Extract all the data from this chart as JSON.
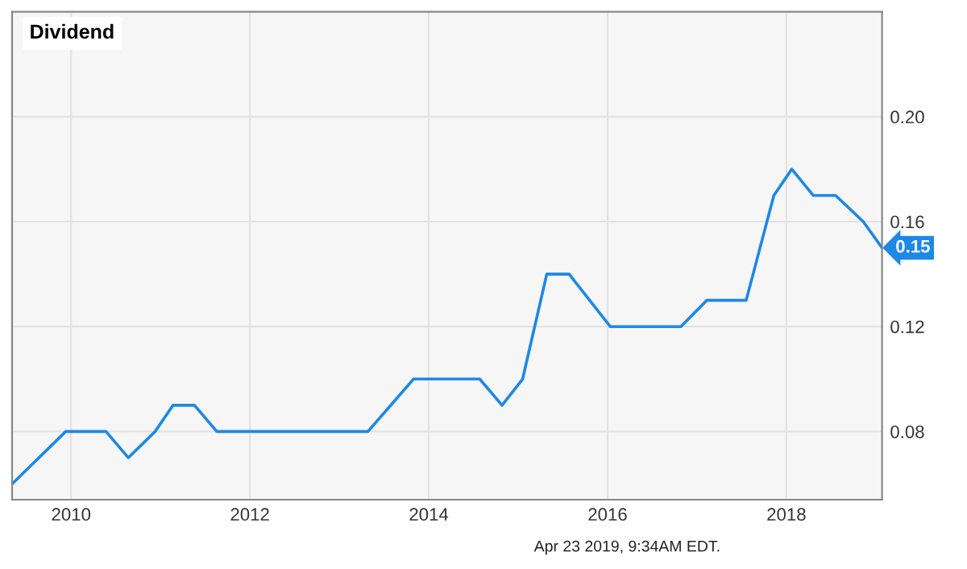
{
  "chart_data": {
    "type": "line",
    "title": "Dividend",
    "x": [
      2009.34,
      2009.94,
      2010.39,
      2010.64,
      2010.94,
      2011.14,
      2011.38,
      2011.63,
      2013.32,
      2013.83,
      2014.57,
      2014.82,
      2015.05,
      2015.32,
      2015.57,
      2016.03,
      2016.82,
      2017.11,
      2017.55,
      2017.86,
      2018.06,
      2018.3,
      2018.55,
      2018.86,
      2019.07
    ],
    "series": [
      {
        "color": "#1e88e5",
        "values": [
          0.06,
          0.08,
          0.08,
          0.07,
          0.08,
          0.09,
          0.09,
          0.08,
          0.08,
          0.1,
          0.1,
          0.09,
          0.1,
          0.14,
          0.14,
          0.12,
          0.12,
          0.13,
          0.13,
          0.17,
          0.18,
          0.17,
          0.17,
          0.16,
          0.15
        ]
      }
    ],
    "xlim": [
      2009.34,
      2019.07
    ],
    "ylim": [
      0.054,
      0.24
    ],
    "xticks": [
      2010,
      2012,
      2014,
      2016,
      2018
    ],
    "yticks": [
      {
        "value": 0.08,
        "label": "0.08"
      },
      {
        "value": 0.12,
        "label": "0.12"
      },
      {
        "value": 0.16,
        "label": "0.16"
      },
      {
        "value": 0.2,
        "label": "0.20"
      }
    ],
    "grid": true,
    "marker": "none",
    "line_style": "solid",
    "annotations": [
      {
        "text": "0.15",
        "x": 2019.07,
        "y": 0.15
      },
      "Apr 23 2019, 9:34AM EDT."
    ]
  }
}
